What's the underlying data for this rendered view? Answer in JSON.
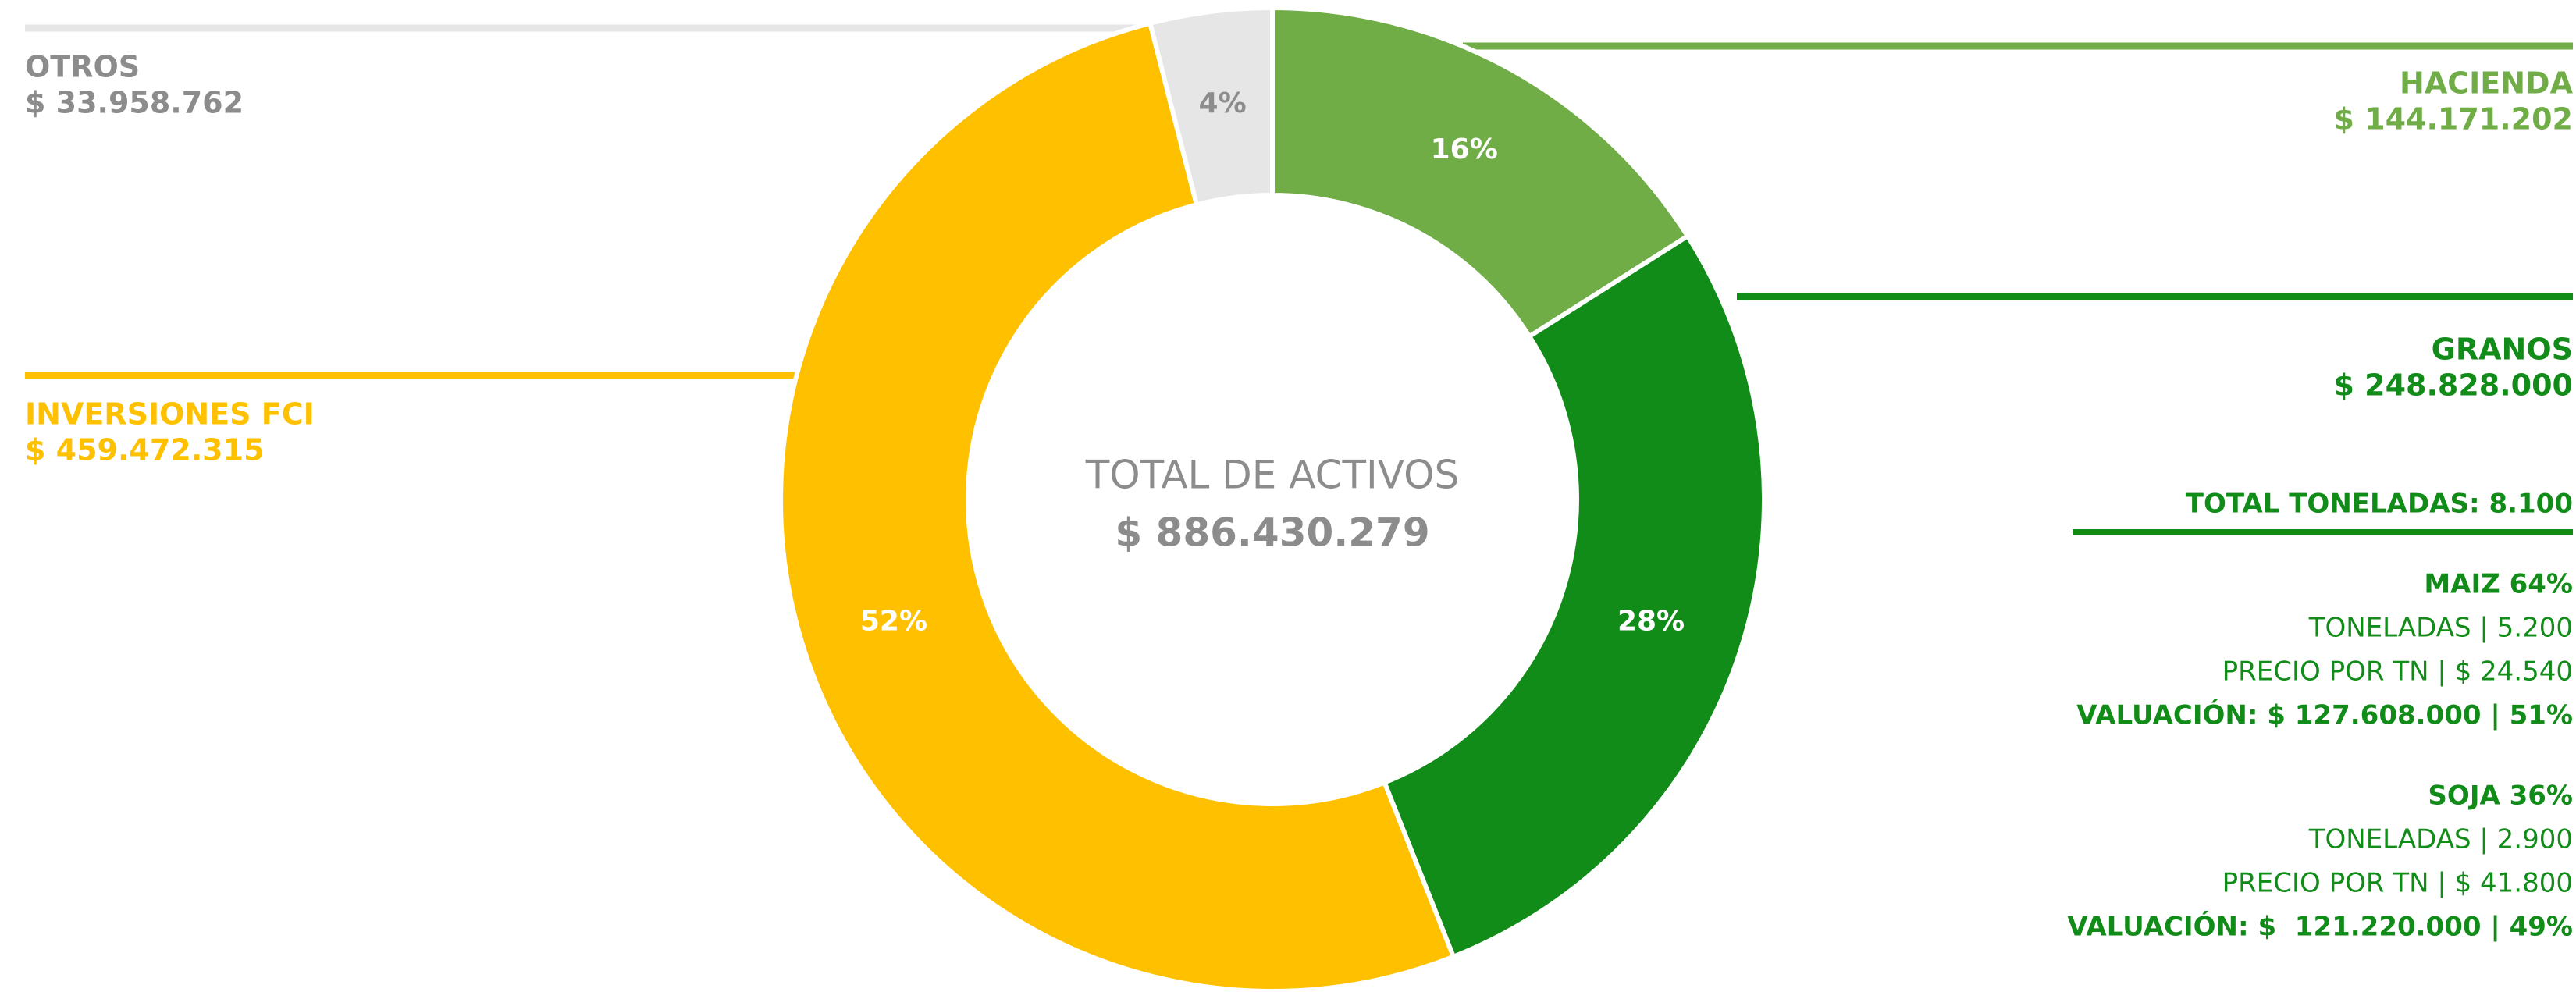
{
  "chart_data": {
    "type": "pie",
    "donut": true,
    "center_title": "TOTAL DE ACTIVOS",
    "center_value": "$ 886.430.279",
    "categories": [
      "HACIENDA",
      "GRANOS",
      "INVERSIONES FCI",
      "OTROS"
    ],
    "amounts": [
      "$ 144.171.202",
      "$ 248.828.000",
      "$ 459.472.315",
      "$ 33.958.762"
    ],
    "values": [
      16,
      28,
      52,
      4
    ],
    "value_labels": [
      "16%",
      "28%",
      "52%",
      "4%"
    ],
    "colors": [
      "#70ad47",
      "#118c18",
      "#ffc000",
      "#e6e6e6"
    ],
    "label_colors": [
      "#70ad47",
      "#118c18",
      "#ffc000",
      "#8c8c8c"
    ],
    "value_label_colors": [
      "#ffffff",
      "#ffffff",
      "#ffffff",
      "#8c8c8c"
    ],
    "granos_details": {
      "total": "TOTAL TONELADAS: 8.100",
      "lines": [
        {
          "text": "MAIZ 64%",
          "bold": true
        },
        {
          "text": "TONELADAS | 5.200",
          "bold": false
        },
        {
          "text": "PRECIO POR TN | $ 24.540",
          "bold": false
        },
        {
          "text": "VALUACIÓN: $ 127.608.000 | 51%",
          "bold": true
        },
        {
          "text": "SOJA 36%",
          "bold": true
        },
        {
          "text": "TONELADAS | 2.900",
          "bold": false
        },
        {
          "text": "PRECIO POR TN | $ 41.800",
          "bold": false
        },
        {
          "text": "VALUACIÓN: $  121.220.000 | 49%",
          "bold": true
        }
      ]
    }
  }
}
